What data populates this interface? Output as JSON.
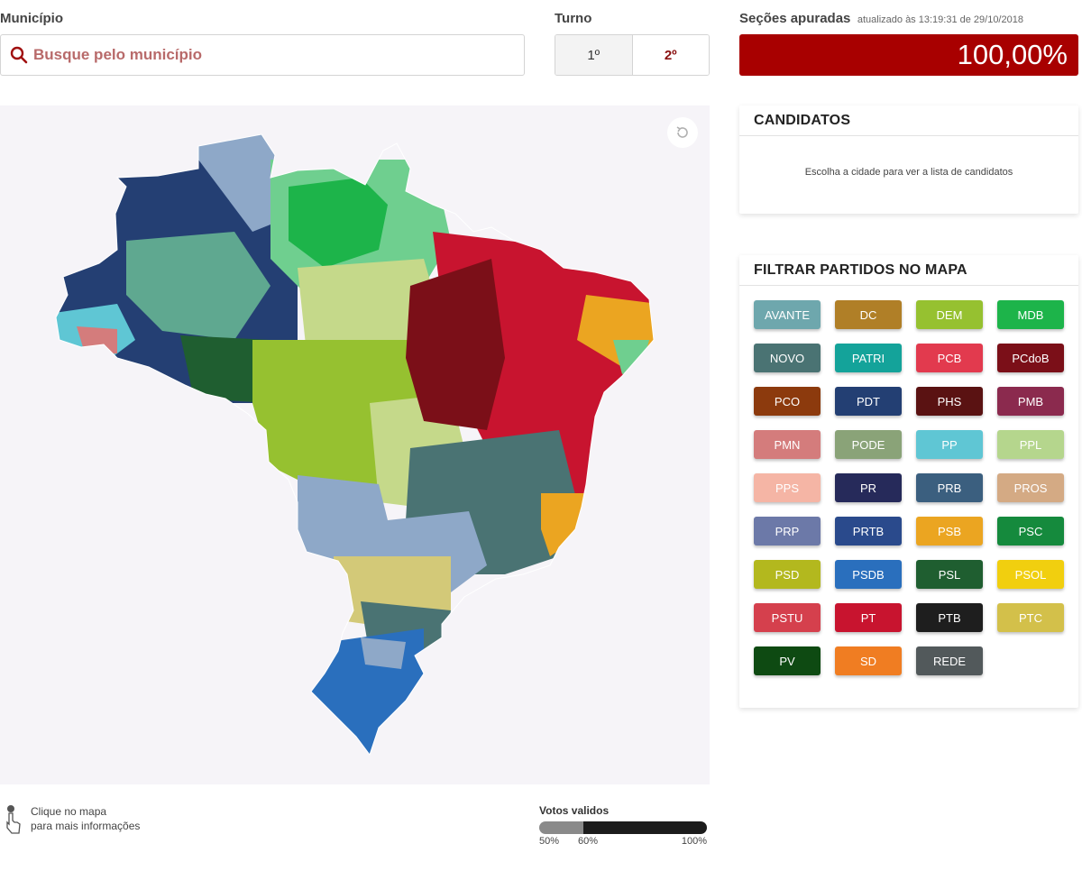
{
  "municipio": {
    "label": "Município",
    "placeholder": "Busque pelo município"
  },
  "turno": {
    "label": "Turno",
    "options": [
      "1º",
      "2º"
    ],
    "selected": "2º"
  },
  "secoes": {
    "label": "Seções apuradas",
    "updated": "atualizado às 13:19:31 de 29/10/2018",
    "value": "100,00%"
  },
  "candidatos": {
    "title": "CANDIDATOS",
    "message": "Escolha a cidade para ver a lista de candidatos"
  },
  "filtro": {
    "title": "FILTRAR PARTIDOS NO MAPA",
    "parties": [
      {
        "name": "AVANTE",
        "color": "#6ea7ad"
      },
      {
        "name": "DC",
        "color": "#b07f27"
      },
      {
        "name": "DEM",
        "color": "#96c130"
      },
      {
        "name": "MDB",
        "color": "#1db44a"
      },
      {
        "name": "NOVO",
        "color": "#4a7373"
      },
      {
        "name": "PATRI",
        "color": "#14a39a"
      },
      {
        "name": "PCB",
        "color": "#e23a4e"
      },
      {
        "name": "PCdoB",
        "color": "#7b0f18"
      },
      {
        "name": "PCO",
        "color": "#8c3a0d"
      },
      {
        "name": "PDT",
        "color": "#233f73"
      },
      {
        "name": "PHS",
        "color": "#5a1212"
      },
      {
        "name": "PMB",
        "color": "#8b2a4e"
      },
      {
        "name": "PMN",
        "color": "#d47c7c"
      },
      {
        "name": "PODE",
        "color": "#8aa378"
      },
      {
        "name": "PP",
        "color": "#5fc6d4"
      },
      {
        "name": "PPL",
        "color": "#b5d68d"
      },
      {
        "name": "PPS",
        "color": "#f5b5a5"
      },
      {
        "name": "PR",
        "color": "#262a5a"
      },
      {
        "name": "PRB",
        "color": "#3b5f7f"
      },
      {
        "name": "PROS",
        "color": "#d4aa84"
      },
      {
        "name": "PRP",
        "color": "#6c79a8"
      },
      {
        "name": "PRTB",
        "color": "#2a4a8c"
      },
      {
        "name": "PSB",
        "color": "#eba521"
      },
      {
        "name": "PSC",
        "color": "#158a3d"
      },
      {
        "name": "PSD",
        "color": "#b3b81e"
      },
      {
        "name": "PSDB",
        "color": "#2a6fbd"
      },
      {
        "name": "PSL",
        "color": "#1f5e30"
      },
      {
        "name": "PSOL",
        "color": "#f1cf0f"
      },
      {
        "name": "PSTU",
        "color": "#d5404d"
      },
      {
        "name": "PT",
        "color": "#c8142f"
      },
      {
        "name": "PTB",
        "color": "#1e1e1e"
      },
      {
        "name": "PTC",
        "color": "#d3c04a"
      },
      {
        "name": "PV",
        "color": "#0e4a12"
      },
      {
        "name": "SD",
        "color": "#f07d22"
      },
      {
        "name": "REDE",
        "color": "#52595b"
      }
    ]
  },
  "hint": {
    "line1": "Clique no mapa",
    "line2": "para mais informações"
  },
  "votos": {
    "title": "Votos validos",
    "ticks": [
      "50%",
      "60%",
      "100%"
    ]
  },
  "map": {
    "region_colors": {
      "north": "#243f73",
      "center": "#96c130",
      "northeast": "#c8142f",
      "southeast": "#4a7373",
      "south": "#2a6fbd"
    }
  }
}
